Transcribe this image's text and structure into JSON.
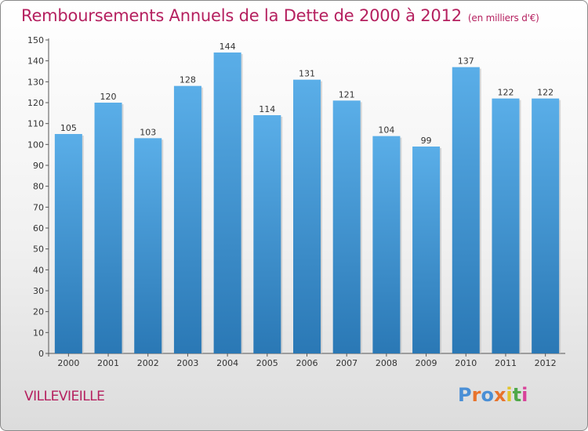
{
  "title": "Remboursements Annuels de la Dette de 2000 à 2012",
  "unit": "(en milliers d'€)",
  "commune": "VILLEVIEILLE",
  "logo": {
    "text": [
      "P",
      "r",
      "o",
      "x",
      "i",
      "t",
      "i"
    ],
    "colors": [
      "#4a8fd6",
      "#e8732c",
      "#4a8fd6",
      "#e8732c",
      "#e2c42a",
      "#4fa84a",
      "#d8439a"
    ]
  },
  "colors": {
    "bar_top": "#5aaee8",
    "bar_bottom": "#2a78b5",
    "title": "#b5205f"
  },
  "chart_data": {
    "type": "bar",
    "title": "Remboursements Annuels de la Dette de 2000 à 2012",
    "xlabel": "",
    "ylabel": "",
    "categories": [
      "2000",
      "2001",
      "2002",
      "2003",
      "2004",
      "2005",
      "2006",
      "2007",
      "2008",
      "2009",
      "2010",
      "2011",
      "2012"
    ],
    "values": [
      105,
      120,
      103,
      128,
      144,
      114,
      131,
      121,
      104,
      99,
      137,
      122,
      122
    ],
    "ylim": [
      0,
      150
    ],
    "yticks": [
      0,
      10,
      20,
      30,
      40,
      50,
      60,
      70,
      80,
      90,
      100,
      110,
      120,
      130,
      140,
      150
    ],
    "grid": false
  }
}
